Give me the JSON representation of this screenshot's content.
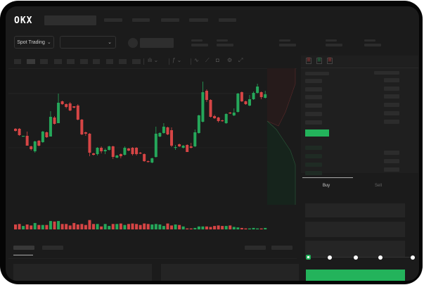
{
  "header": {
    "logo": "OKX",
    "market_selector": "Spot Trading",
    "chevron": "⌄"
  },
  "trade_form": {
    "tabs": [
      "Buy",
      "Sell"
    ],
    "active_tab": "Buy",
    "slider_percent": 0
  },
  "colors": {
    "up": "#25a75a",
    "down": "#d64545",
    "buy_button": "#23b35b",
    "background": "#1b1b1b"
  },
  "toolbar_icons": [
    "chart-type-icon",
    "indicator-icon",
    "draw-line-icon",
    "ruler-icon",
    "camera-icon",
    "settings-icon",
    "fullscreen-icon"
  ],
  "orderbook_icons": [
    "both-sides-icon",
    "bids-only-icon",
    "asks-only-icon"
  ],
  "chart_data": {
    "type": "candlestick",
    "fields": [
      "open",
      "high",
      "low",
      "close"
    ],
    "candles": [
      [
        68,
        69,
        64,
        65
      ],
      [
        68,
        69,
        58,
        59
      ],
      [
        57,
        58,
        57,
        58
      ],
      [
        58,
        64,
        44,
        44
      ],
      [
        43,
        44,
        37,
        39
      ],
      [
        36,
        51,
        34,
        50
      ],
      [
        51,
        52,
        43,
        44
      ],
      [
        49,
        65,
        48,
        64
      ],
      [
        63,
        64,
        55,
        56
      ],
      [
        57,
        93,
        57,
        85
      ],
      [
        84,
        86,
        74,
        75
      ],
      [
        76,
        118,
        76,
        105
      ],
      [
        107,
        108,
        102,
        103
      ],
      [
        103,
        104,
        97,
        99
      ],
      [
        104,
        106,
        93,
        94
      ],
      [
        100,
        100,
        97,
        98
      ],
      [
        101,
        103,
        80,
        81
      ],
      [
        81,
        82,
        59,
        60
      ],
      [
        63,
        64,
        58,
        61
      ],
      [
        61,
        62,
        29,
        34
      ],
      [
        33,
        34,
        30,
        31
      ],
      [
        32,
        42,
        30,
        41
      ],
      [
        41,
        43,
        33,
        36
      ],
      [
        36,
        40,
        32,
        38
      ],
      [
        38,
        44,
        37,
        43
      ],
      [
        43,
        44,
        25,
        28
      ],
      [
        27,
        31,
        26,
        30
      ],
      [
        32,
        33,
        26,
        29
      ],
      [
        31,
        43,
        30,
        41
      ],
      [
        40,
        41,
        36,
        37
      ],
      [
        41,
        42,
        30,
        32
      ],
      [
        41,
        42,
        30,
        32
      ],
      [
        34,
        35,
        32,
        33
      ],
      [
        32,
        33,
        21,
        22
      ],
      [
        22,
        23,
        20,
        21
      ],
      [
        20,
        27,
        19,
        26
      ],
      [
        28,
        71,
        27,
        61
      ],
      [
        57,
        63,
        56,
        62
      ],
      [
        62,
        76,
        61,
        71
      ],
      [
        70,
        71,
        59,
        60
      ],
      [
        66,
        70,
        42,
        44
      ],
      [
        41,
        45,
        38,
        42
      ],
      [
        46,
        47,
        42,
        43
      ],
      [
        41,
        45,
        40,
        44
      ],
      [
        45,
        46,
        35,
        35
      ],
      [
        43,
        48,
        40,
        41
      ],
      [
        43,
        67,
        42,
        63
      ],
      [
        62,
        88,
        61,
        87
      ],
      [
        78,
        135,
        77,
        120
      ],
      [
        122,
        124,
        106,
        109
      ],
      [
        109,
        110,
        84,
        85
      ],
      [
        86,
        88,
        82,
        83
      ],
      [
        84,
        85,
        77,
        79
      ],
      [
        80,
        81,
        78,
        79
      ],
      [
        76,
        90,
        75,
        89
      ],
      [
        91,
        92,
        89,
        90
      ],
      [
        87,
        97,
        86,
        91
      ],
      [
        92,
        119,
        91,
        118
      ],
      [
        120,
        121,
        106,
        107
      ],
      [
        107,
        108,
        102,
        103
      ],
      [
        101,
        116,
        100,
        110
      ],
      [
        110,
        121,
        109,
        119
      ],
      [
        119,
        132,
        118,
        128
      ],
      [
        120,
        121,
        110,
        113
      ],
      [
        112,
        122,
        111,
        117
      ]
    ],
    "volume": [
      10,
      11,
      7,
      10,
      8,
      13,
      9,
      9,
      9,
      17,
      16,
      17,
      11,
      11,
      8,
      13,
      10,
      11,
      9,
      19,
      11,
      11,
      6,
      11,
      7,
      11,
      11,
      12,
      9,
      11,
      12,
      11,
      9,
      12,
      11,
      10,
      11,
      10,
      7,
      12,
      8,
      10,
      9,
      6,
      2,
      2,
      3,
      6,
      6,
      6,
      5,
      7,
      8,
      7,
      7,
      8,
      5,
      4,
      3,
      2,
      2,
      3,
      2,
      2,
      3
    ]
  }
}
